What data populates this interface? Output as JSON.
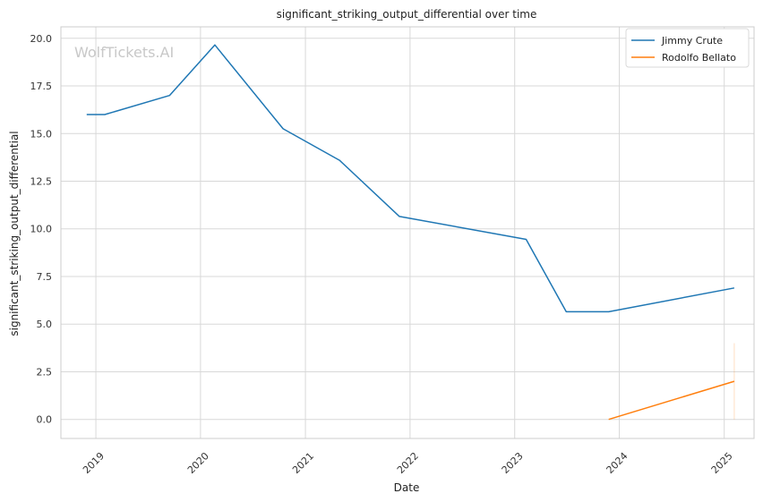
{
  "chart_data": {
    "type": "line",
    "title": "significant_striking_output_differential over time",
    "xlabel": "Date",
    "ylabel": "significant_striking_output_differential",
    "watermark": "WolfTickets.AI",
    "x_ticks": [
      "2019",
      "2020",
      "2021",
      "2022",
      "2023",
      "2024",
      "2025"
    ],
    "y_ticks": [
      "0.0",
      "2.5",
      "5.0",
      "7.5",
      "10.0",
      "12.5",
      "15.0",
      "17.5",
      "20.0"
    ],
    "xlim": [
      "2018-09-01",
      "2025-04-15"
    ],
    "ylim": [
      -1.0,
      20.6
    ],
    "grid": true,
    "legend_position": "top-right",
    "series": [
      {
        "name": "Jimmy Crute",
        "color": "#1f77b4",
        "points": [
          {
            "x": "2018-11-30",
            "y": 16.0
          },
          {
            "x": "2019-02-01",
            "y": 16.0
          },
          {
            "x": "2019-09-15",
            "y": 17.0
          },
          {
            "x": "2020-02-20",
            "y": 19.65
          },
          {
            "x": "2020-10-15",
            "y": 15.25
          },
          {
            "x": "2021-04-30",
            "y": 13.6
          },
          {
            "x": "2021-11-25",
            "y": 10.65
          },
          {
            "x": "2023-02-10",
            "y": 9.45
          },
          {
            "x": "2023-06-30",
            "y": 5.65
          },
          {
            "x": "2023-11-25",
            "y": 5.65
          },
          {
            "x": "2025-02-05",
            "y": 6.9
          }
        ]
      },
      {
        "name": "Rodolfo Bellato",
        "color": "#ff7f0e",
        "points": [
          {
            "x": "2023-11-25",
            "y": 0.0
          },
          {
            "x": "2025-02-05",
            "y": 2.0
          }
        ],
        "band": {
          "x": "2025-02-05",
          "low": 0.0,
          "high": 4.0
        }
      }
    ]
  }
}
